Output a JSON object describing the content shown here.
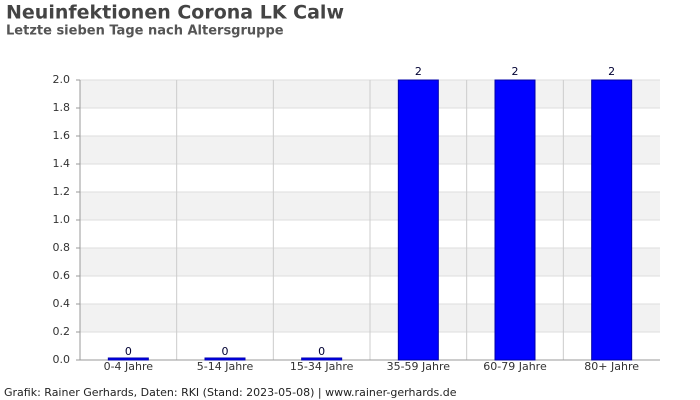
{
  "chart_data": {
    "type": "bar",
    "title": "Neuinfektionen Corona LK Calw",
    "subtitle": "Letzte sieben Tage nach Altersgruppe",
    "source": "Grafik: Rainer Gerhards, Daten: RKI (Stand: 2023-05-08) | www.rainer-gerhards.de",
    "categories": [
      "0-4 Jahre",
      "5-14 Jahre",
      "15-34 Jahre",
      "35-59 Jahre",
      "60-79 Jahre",
      "80+ Jahre"
    ],
    "values": [
      0,
      0,
      0,
      2,
      2,
      2
    ],
    "color": "#0000ff",
    "ylim": [
      0,
      2
    ],
    "yticks": [
      {
        "value": 0,
        "label": "0.0"
      },
      0.2,
      0.4,
      0.6,
      0.8,
      {
        "value": 1,
        "label": "1.0"
      },
      1.2,
      1.4,
      1.6,
      1.8,
      {
        "value": 2,
        "label": "2.0"
      }
    ],
    "grid": true
  }
}
